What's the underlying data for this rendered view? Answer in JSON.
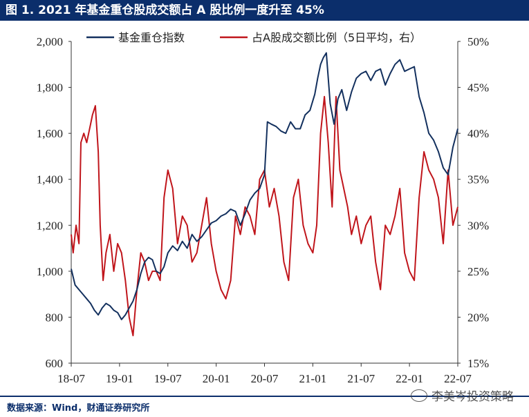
{
  "header": {
    "title": "图 1. 2021 年基金重仓股成交额占 A 股比例一度升至 45%"
  },
  "footer": {
    "source": "数据来源：Wind，财通证券研究所"
  },
  "watermark": {
    "text": "李美岑投资策略",
    "icon": "wechat-icon"
  },
  "colors": {
    "title_bg": "#0b2e6b",
    "series_index": "#13305e",
    "series_ratio": "#c0151b"
  },
  "chart_data": {
    "type": "line",
    "title": "图 1. 2021 年基金重仓股成交额占 A 股比例一度升至 45%",
    "x_ticks": [
      "18-07",
      "19-01",
      "19-07",
      "20-01",
      "20-07",
      "21-01",
      "21-07",
      "22-01",
      "22-07"
    ],
    "x_tick_positions": [
      2018.5,
      2019.0,
      2019.5,
      2020.0,
      2020.5,
      2021.0,
      2021.5,
      2022.0,
      2022.5
    ],
    "xlim": [
      2018.5,
      2022.5
    ],
    "y_left": {
      "ylim": [
        600,
        2000
      ],
      "ticks": [
        "600",
        "800",
        "1,000",
        "1,200",
        "1,400",
        "1,600",
        "1,800",
        "2,000"
      ],
      "tick_values": [
        600,
        800,
        1000,
        1200,
        1400,
        1600,
        1800,
        2000
      ]
    },
    "y_right": {
      "ylim": [
        15,
        50
      ],
      "ticks": [
        "15%",
        "20%",
        "25%",
        "30%",
        "35%",
        "40%",
        "45%",
        "50%"
      ],
      "tick_values": [
        15,
        20,
        25,
        30,
        35,
        40,
        45,
        50
      ]
    },
    "legend_placement": "top",
    "grid": false,
    "series": [
      {
        "name": "基金重仓指数",
        "axis": "left",
        "x": [
          2018.5,
          2018.54,
          2018.58,
          2018.62,
          2018.66,
          2018.7,
          2018.74,
          2018.78,
          2018.82,
          2018.86,
          2018.9,
          2018.94,
          2018.98,
          2019.02,
          2019.06,
          2019.1,
          2019.14,
          2019.18,
          2019.22,
          2019.26,
          2019.3,
          2019.34,
          2019.38,
          2019.42,
          2019.46,
          2019.5,
          2019.55,
          2019.6,
          2019.65,
          2019.7,
          2019.75,
          2019.8,
          2019.85,
          2019.9,
          2019.95,
          2020.0,
          2020.05,
          2020.1,
          2020.15,
          2020.2,
          2020.25,
          2020.3,
          2020.35,
          2020.4,
          2020.45,
          2020.5,
          2020.53,
          2020.57,
          2020.62,
          2020.67,
          2020.72,
          2020.77,
          2020.82,
          2020.87,
          2020.92,
          2020.97,
          2021.02,
          2021.05,
          2021.08,
          2021.11,
          2021.14,
          2021.18,
          2021.22,
          2021.26,
          2021.3,
          2021.35,
          2021.4,
          2021.45,
          2021.5,
          2021.55,
          2021.6,
          2021.65,
          2021.7,
          2021.75,
          2021.8,
          2021.85,
          2021.9,
          2021.95,
          2022.0,
          2022.05,
          2022.1,
          2022.15,
          2022.2,
          2022.25,
          2022.3,
          2022.35,
          2022.4,
          2022.45,
          2022.5
        ],
        "values": [
          1010,
          940,
          920,
          900,
          880,
          860,
          830,
          810,
          840,
          860,
          850,
          830,
          820,
          790,
          810,
          840,
          870,
          920,
          990,
          1040,
          1060,
          1050,
          1000,
          990,
          1020,
          1080,
          1110,
          1090,
          1130,
          1100,
          1160,
          1130,
          1150,
          1180,
          1210,
          1220,
          1240,
          1250,
          1270,
          1260,
          1200,
          1250,
          1310,
          1340,
          1360,
          1420,
          1650,
          1640,
          1630,
          1610,
          1600,
          1650,
          1620,
          1620,
          1680,
          1700,
          1770,
          1840,
          1900,
          1930,
          1950,
          1730,
          1640,
          1750,
          1790,
          1700,
          1780,
          1840,
          1860,
          1870,
          1830,
          1870,
          1880,
          1810,
          1860,
          1900,
          1920,
          1870,
          1880,
          1890,
          1760,
          1690,
          1600,
          1570,
          1520,
          1450,
          1420,
          1540,
          1620
        ]
      },
      {
        "name": "占A股成交额比例（5日平均，右）",
        "axis": "right",
        "x": [
          2018.5,
          2018.52,
          2018.55,
          2018.58,
          2018.6,
          2018.63,
          2018.66,
          2018.7,
          2018.72,
          2018.75,
          2018.78,
          2018.8,
          2018.83,
          2018.86,
          2018.9,
          2018.94,
          2018.98,
          2019.02,
          2019.06,
          2019.1,
          2019.14,
          2019.18,
          2019.22,
          2019.26,
          2019.3,
          2019.34,
          2019.38,
          2019.42,
          2019.46,
          2019.5,
          2019.55,
          2019.6,
          2019.65,
          2019.7,
          2019.75,
          2019.8,
          2019.85,
          2019.9,
          2019.95,
          2020.0,
          2020.05,
          2020.1,
          2020.15,
          2020.2,
          2020.25,
          2020.3,
          2020.35,
          2020.4,
          2020.45,
          2020.5,
          2020.55,
          2020.6,
          2020.65,
          2020.7,
          2020.75,
          2020.8,
          2020.85,
          2020.9,
          2020.95,
          2021.0,
          2021.04,
          2021.08,
          2021.12,
          2021.16,
          2021.2,
          2021.24,
          2021.28,
          2021.32,
          2021.36,
          2021.4,
          2021.45,
          2021.5,
          2021.55,
          2021.6,
          2021.65,
          2021.7,
          2021.75,
          2021.8,
          2021.85,
          2021.9,
          2021.95,
          2022.0,
          2022.05,
          2022.1,
          2022.15,
          2022.2,
          2022.25,
          2022.3,
          2022.35,
          2022.4,
          2022.45,
          2022.5
        ],
        "values": [
          29,
          27,
          30,
          28,
          39,
          40,
          39,
          41,
          42,
          43,
          38,
          30,
          24,
          27,
          29,
          25,
          28,
          27,
          24,
          20,
          18,
          23,
          27,
          26,
          24,
          25,
          25,
          24,
          33,
          36,
          34,
          28,
          31,
          30,
          26,
          27,
          30,
          33,
          28,
          25,
          23,
          22,
          24,
          31,
          29,
          32,
          31,
          29,
          35,
          36,
          32,
          34,
          31,
          26,
          24,
          33,
          35,
          30,
          28,
          27,
          30,
          40,
          44,
          39,
          32,
          44,
          36,
          34,
          32,
          29,
          31,
          28,
          30,
          31,
          26,
          23,
          30,
          29,
          31,
          34,
          27,
          25,
          24,
          33,
          38,
          36,
          35,
          33,
          28,
          36,
          30,
          32
        ]
      }
    ]
  }
}
